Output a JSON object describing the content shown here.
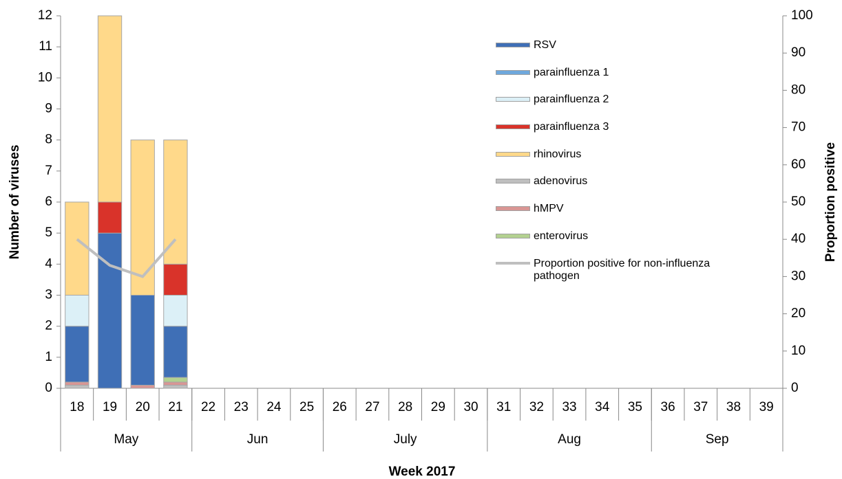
{
  "chart_data": {
    "type": "bar",
    "x_title": "Week 2017",
    "y_title": "Number of viruses",
    "y2_title": "Proportion positive",
    "categories": [
      "18",
      "19",
      "20",
      "21",
      "22",
      "23",
      "24",
      "25",
      "26",
      "27",
      "28",
      "29",
      "30",
      "31",
      "32",
      "33",
      "34",
      "35",
      "36",
      "37",
      "38",
      "39"
    ],
    "month_groups": [
      {
        "label": "May",
        "weeks": 4
      },
      {
        "label": "Jun",
        "weeks": 4
      },
      {
        "label": "July",
        "weeks": 5
      },
      {
        "label": "Aug",
        "weeks": 5
      },
      {
        "label": "Sep",
        "weeks": 4
      }
    ],
    "ylim": [
      0,
      12
    ],
    "yticks": [
      0,
      1,
      2,
      3,
      4,
      5,
      6,
      7,
      8,
      9,
      10,
      11,
      12
    ],
    "y2lim": [
      0,
      100
    ],
    "y2ticks": [
      0,
      10,
      20,
      30,
      40,
      50,
      60,
      70,
      80,
      90,
      100
    ],
    "series": [
      {
        "name": "RSV",
        "color": "#3f6fb6",
        "values": [
          1.8,
          5,
          2.9,
          1.65,
          null,
          null,
          null,
          null,
          null,
          null,
          null,
          null,
          null,
          null,
          null,
          null,
          null,
          null,
          null,
          null,
          null,
          null
        ]
      },
      {
        "name": "parainfluenza 1",
        "color": "#6fa8dc",
        "values": [
          0,
          0,
          0,
          0,
          null,
          null,
          null,
          null,
          null,
          null,
          null,
          null,
          null,
          null,
          null,
          null,
          null,
          null,
          null,
          null,
          null,
          null
        ]
      },
      {
        "name": "parainfluenza 2",
        "color": "#dcf0f7",
        "values": [
          1,
          0,
          0,
          1,
          null,
          null,
          null,
          null,
          null,
          null,
          null,
          null,
          null,
          null,
          null,
          null,
          null,
          null,
          null,
          null,
          null,
          null
        ]
      },
      {
        "name": "parainfluenza 3",
        "color": "#d9332a",
        "values": [
          0,
          1,
          0,
          1,
          null,
          null,
          null,
          null,
          null,
          null,
          null,
          null,
          null,
          null,
          null,
          null,
          null,
          null,
          null,
          null,
          null,
          null
        ]
      },
      {
        "name": "rhinovirus",
        "color": "#ffd98a",
        "values": [
          3,
          6,
          5,
          4,
          null,
          null,
          null,
          null,
          null,
          null,
          null,
          null,
          null,
          null,
          null,
          null,
          null,
          null,
          null,
          null,
          null,
          null
        ]
      },
      {
        "name": "adenovirus",
        "color": "#bfbfbf",
        "values": [
          0.1,
          0,
          0,
          0.1,
          null,
          null,
          null,
          null,
          null,
          null,
          null,
          null,
          null,
          null,
          null,
          null,
          null,
          null,
          null,
          null,
          null,
          null
        ]
      },
      {
        "name": "hMPV",
        "color": "#d99694",
        "values": [
          0.1,
          0,
          0.1,
          0.1,
          null,
          null,
          null,
          null,
          null,
          null,
          null,
          null,
          null,
          null,
          null,
          null,
          null,
          null,
          null,
          null,
          null,
          null
        ]
      },
      {
        "name": "enterovirus",
        "color": "#b3d190",
        "values": [
          0,
          0,
          0,
          0.15,
          null,
          null,
          null,
          null,
          null,
          null,
          null,
          null,
          null,
          null,
          null,
          null,
          null,
          null,
          null,
          null,
          null,
          null
        ]
      },
      {
        "name": "Proportion positive for non-influenza pathogen",
        "color": "#bfbfbf",
        "type": "line",
        "axis": "y2",
        "values": [
          40,
          33,
          30,
          40,
          null,
          null,
          null,
          null,
          null,
          null,
          null,
          null,
          null,
          null,
          null,
          null,
          null,
          null,
          null,
          null,
          null,
          null
        ]
      }
    ]
  }
}
